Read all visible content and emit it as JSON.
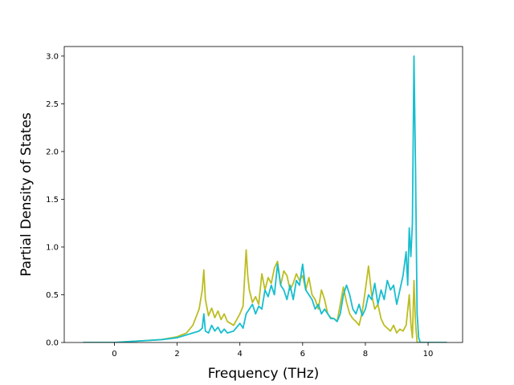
{
  "chart_data": {
    "type": "line",
    "title": "",
    "xlabel": "Frequency (THz)",
    "ylabel": "Partial Density of States",
    "xlim": [
      -1.6,
      11.1
    ],
    "ylim": [
      0.0,
      3.1
    ],
    "xticks": [
      0,
      2,
      4,
      6,
      8,
      10
    ],
    "xtick_labels": [
      "0",
      "2",
      "4",
      "6",
      "8",
      "10"
    ],
    "yticks": [
      0.0,
      0.5,
      1.0,
      1.5,
      2.0,
      2.5,
      3.0
    ],
    "ytick_labels": [
      "0.0",
      "0.5",
      "1.0",
      "1.5",
      "2.0",
      "2.5",
      "3.0"
    ],
    "grid": false,
    "legend": "none",
    "series": [
      {
        "color": "#bcbd22",
        "x": [
          -1.0,
          0.0,
          0.5,
          1.0,
          1.5,
          2.0,
          2.3,
          2.5,
          2.7,
          2.8,
          2.85,
          2.9,
          3.0,
          3.1,
          3.2,
          3.3,
          3.4,
          3.5,
          3.6,
          3.8,
          4.0,
          4.1,
          4.2,
          4.25,
          4.3,
          4.4,
          4.5,
          4.6,
          4.7,
          4.8,
          4.9,
          5.0,
          5.1,
          5.2,
          5.3,
          5.4,
          5.5,
          5.6,
          5.7,
          5.8,
          5.9,
          6.0,
          6.1,
          6.2,
          6.3,
          6.4,
          6.5,
          6.6,
          6.7,
          6.8,
          6.9,
          7.0,
          7.1,
          7.2,
          7.3,
          7.4,
          7.5,
          7.6,
          7.7,
          7.8,
          7.9,
          8.0,
          8.1,
          8.2,
          8.3,
          8.4,
          8.5,
          8.6,
          8.7,
          8.8,
          8.9,
          9.0,
          9.1,
          9.2,
          9.3,
          9.4,
          9.45,
          9.5,
          9.55,
          9.6,
          9.65,
          9.7,
          9.75,
          10.0,
          10.6
        ],
        "y": [
          0.0,
          0.0,
          0.01,
          0.02,
          0.03,
          0.06,
          0.1,
          0.18,
          0.35,
          0.55,
          0.76,
          0.45,
          0.28,
          0.36,
          0.26,
          0.33,
          0.24,
          0.3,
          0.22,
          0.18,
          0.3,
          0.38,
          0.97,
          0.7,
          0.55,
          0.42,
          0.48,
          0.4,
          0.72,
          0.55,
          0.68,
          0.62,
          0.78,
          0.85,
          0.6,
          0.75,
          0.7,
          0.55,
          0.62,
          0.72,
          0.65,
          0.7,
          0.55,
          0.68,
          0.5,
          0.45,
          0.35,
          0.55,
          0.45,
          0.3,
          0.26,
          0.25,
          0.22,
          0.4,
          0.58,
          0.42,
          0.3,
          0.25,
          0.22,
          0.18,
          0.32,
          0.55,
          0.8,
          0.5,
          0.35,
          0.4,
          0.25,
          0.18,
          0.15,
          0.12,
          0.18,
          0.1,
          0.14,
          0.12,
          0.18,
          0.5,
          0.2,
          0.05,
          0.65,
          0.2,
          0.0,
          0.0,
          0.0,
          0.0,
          0.0
        ]
      },
      {
        "color": "#17becf",
        "x": [
          -1.0,
          0.0,
          0.5,
          1.0,
          1.5,
          2.0,
          2.3,
          2.5,
          2.7,
          2.8,
          2.85,
          2.9,
          3.0,
          3.1,
          3.2,
          3.3,
          3.4,
          3.5,
          3.6,
          3.8,
          4.0,
          4.1,
          4.2,
          4.3,
          4.4,
          4.5,
          4.6,
          4.7,
          4.8,
          4.9,
          5.0,
          5.1,
          5.2,
          5.3,
          5.4,
          5.5,
          5.6,
          5.7,
          5.8,
          5.9,
          6.0,
          6.1,
          6.2,
          6.3,
          6.4,
          6.5,
          6.6,
          6.7,
          6.8,
          6.9,
          7.0,
          7.1,
          7.2,
          7.3,
          7.4,
          7.5,
          7.6,
          7.7,
          7.8,
          7.9,
          8.0,
          8.1,
          8.2,
          8.3,
          8.4,
          8.5,
          8.6,
          8.7,
          8.8,
          8.9,
          9.0,
          9.1,
          9.2,
          9.3,
          9.35,
          9.4,
          9.45,
          9.5,
          9.55,
          9.6,
          9.65,
          9.7,
          9.75,
          10.0,
          10.6
        ],
        "y": [
          0.0,
          0.0,
          0.01,
          0.02,
          0.03,
          0.05,
          0.08,
          0.1,
          0.12,
          0.15,
          0.3,
          0.12,
          0.1,
          0.18,
          0.12,
          0.16,
          0.1,
          0.14,
          0.1,
          0.12,
          0.2,
          0.15,
          0.3,
          0.35,
          0.4,
          0.3,
          0.38,
          0.35,
          0.55,
          0.48,
          0.6,
          0.5,
          0.82,
          0.6,
          0.55,
          0.45,
          0.6,
          0.45,
          0.65,
          0.6,
          0.82,
          0.55,
          0.5,
          0.45,
          0.35,
          0.4,
          0.3,
          0.35,
          0.3,
          0.25,
          0.25,
          0.22,
          0.3,
          0.5,
          0.6,
          0.5,
          0.35,
          0.3,
          0.4,
          0.28,
          0.35,
          0.5,
          0.45,
          0.62,
          0.4,
          0.55,
          0.45,
          0.65,
          0.55,
          0.6,
          0.4,
          0.55,
          0.7,
          0.95,
          0.6,
          1.2,
          0.9,
          1.25,
          3.0,
          1.8,
          0.3,
          0.05,
          0.0,
          0.0,
          0.0
        ]
      }
    ]
  }
}
